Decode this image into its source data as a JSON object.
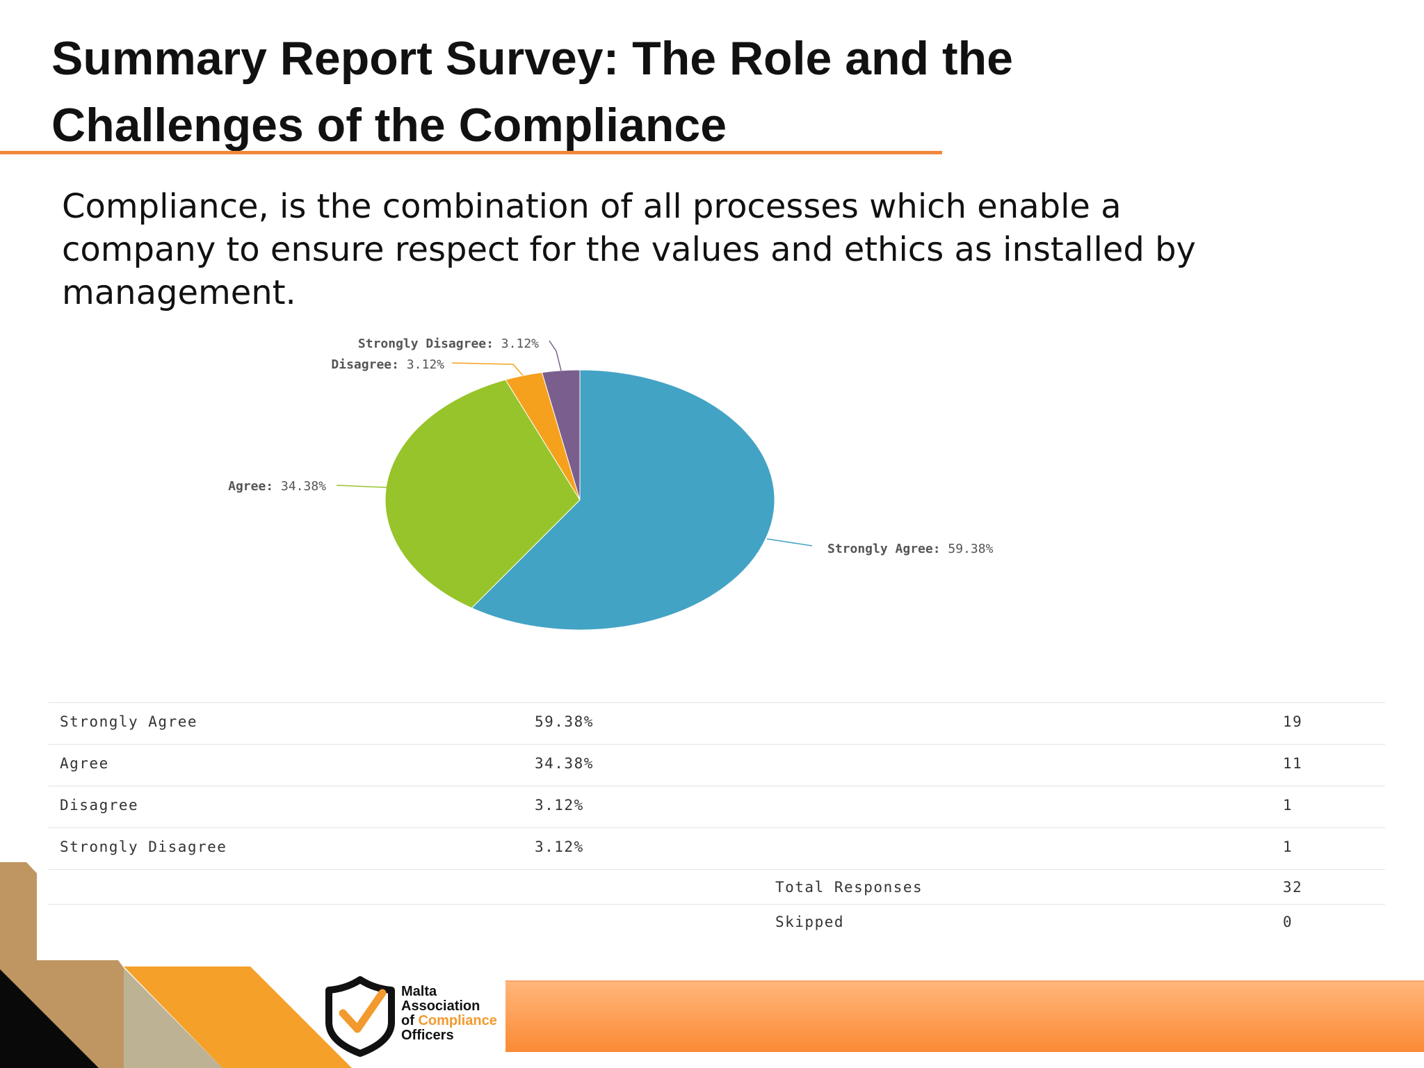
{
  "title": {
    "line1": "Summary Report Survey: The Role and the",
    "line2": "Challenges of the Compliance"
  },
  "intro": {
    "line1": "Compliance, is the combination of all processes which enable a",
    "line2": "company to ensure respect for the values and ethics as installed by",
    "line3": "management."
  },
  "chart_data": {
    "type": "pie",
    "categories": [
      "Strongly Agree",
      "Agree",
      "Disagree",
      "Strongly Disagree"
    ],
    "values": [
      59.38,
      34.38,
      3.12,
      3.12
    ],
    "labels": [
      "59.38%",
      "34.38%",
      "3.12%",
      "3.12%"
    ],
    "colors": [
      "#43a3c4",
      "#97c42a",
      "#f6a11e",
      "#7a5f8e"
    ],
    "start_angle": "12 o'clock",
    "direction": "clockwise"
  },
  "table": {
    "rows": [
      {
        "label": "Strongly Agree",
        "pct": "59.38%",
        "count": "19"
      },
      {
        "label": "Agree",
        "pct": "34.38%",
        "count": "11"
      },
      {
        "label": "Disagree",
        "pct": "3.12%",
        "count": "1"
      },
      {
        "label": "Strongly Disagree",
        "pct": "3.12%",
        "count": "1"
      }
    ],
    "total_label": "Total Responses",
    "total_value": "32",
    "skipped_label": "Skipped",
    "skipped_value": "0"
  },
  "logo": {
    "line1": "Malta",
    "line2": "Association",
    "line3_prefix": "of",
    "line3_accent": "Compliance",
    "line4": "Officers",
    "accent_color": "#f29a2e"
  }
}
